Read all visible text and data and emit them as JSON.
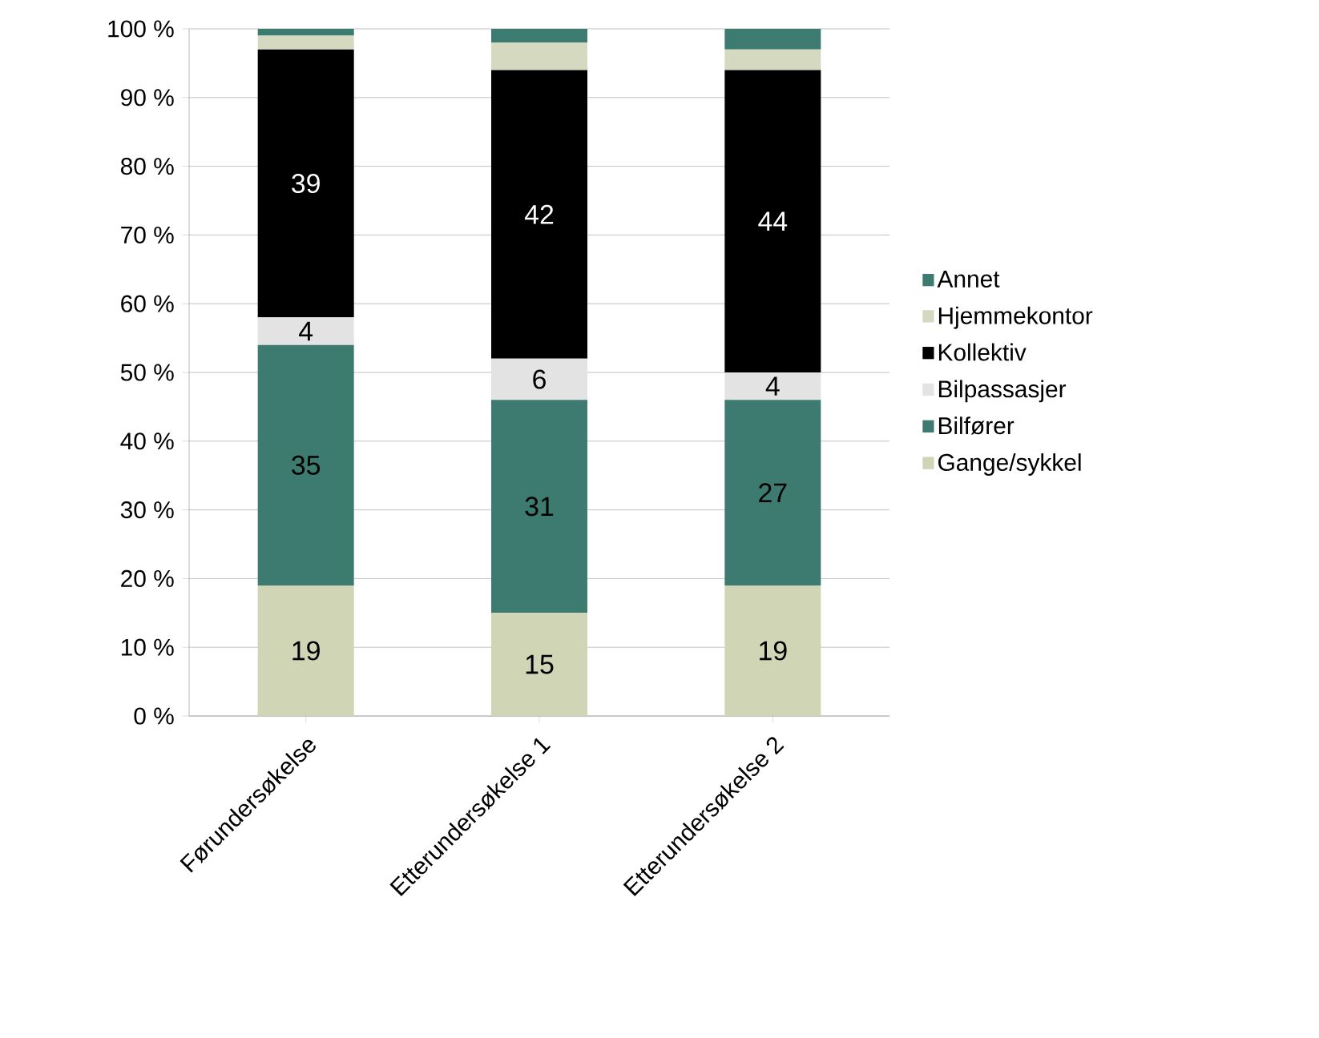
{
  "chart_data": {
    "type": "bar",
    "stacked": true,
    "categories": [
      "Førundersøkelse",
      "Etterundersøkelse 1",
      "Etterundersøkelse 2"
    ],
    "series": [
      {
        "name": "Gange/sykkel",
        "color": "#cfd5b5",
        "values": [
          19,
          15,
          19
        ],
        "value_labels": [
          "19",
          "15",
          "19"
        ]
      },
      {
        "name": "Bilfører",
        "color": "#3d7a6f",
        "values": [
          35,
          31,
          27
        ],
        "value_labels": [
          "35",
          "31",
          "27"
        ]
      },
      {
        "name": "Bilpassasjer",
        "color": "#e3e3e3",
        "values": [
          4,
          6,
          4
        ],
        "value_labels": [
          "4",
          "6",
          "4"
        ]
      },
      {
        "name": "Kollektiv",
        "color": "#000000",
        "values": [
          39,
          42,
          44
        ],
        "value_labels": [
          "39",
          "42",
          "44"
        ]
      },
      {
        "name": "Hjemmekontor",
        "color": "#d4d9bf",
        "values": [
          2,
          4,
          3
        ],
        "value_labels": [
          null,
          null,
          null
        ]
      },
      {
        "name": "Annet",
        "color": "#3d7a6f",
        "values": [
          1,
          2,
          3
        ],
        "value_labels": [
          null,
          null,
          null
        ]
      }
    ],
    "ylim": [
      0,
      100
    ],
    "yticks": [
      {
        "value": 0,
        "label": "0 %"
      },
      {
        "value": 10,
        "label": "10 %"
      },
      {
        "value": 20,
        "label": "20 %"
      },
      {
        "value": 30,
        "label": "30 %"
      },
      {
        "value": 40,
        "label": "40 %"
      },
      {
        "value": 50,
        "label": "50 %"
      },
      {
        "value": 60,
        "label": "60 %"
      },
      {
        "value": 70,
        "label": "70 %"
      },
      {
        "value": 80,
        "label": "80 %"
      },
      {
        "value": 90,
        "label": "90 %"
      },
      {
        "value": 100,
        "label": "100 %"
      }
    ],
    "grid": "y",
    "legend": "right"
  }
}
